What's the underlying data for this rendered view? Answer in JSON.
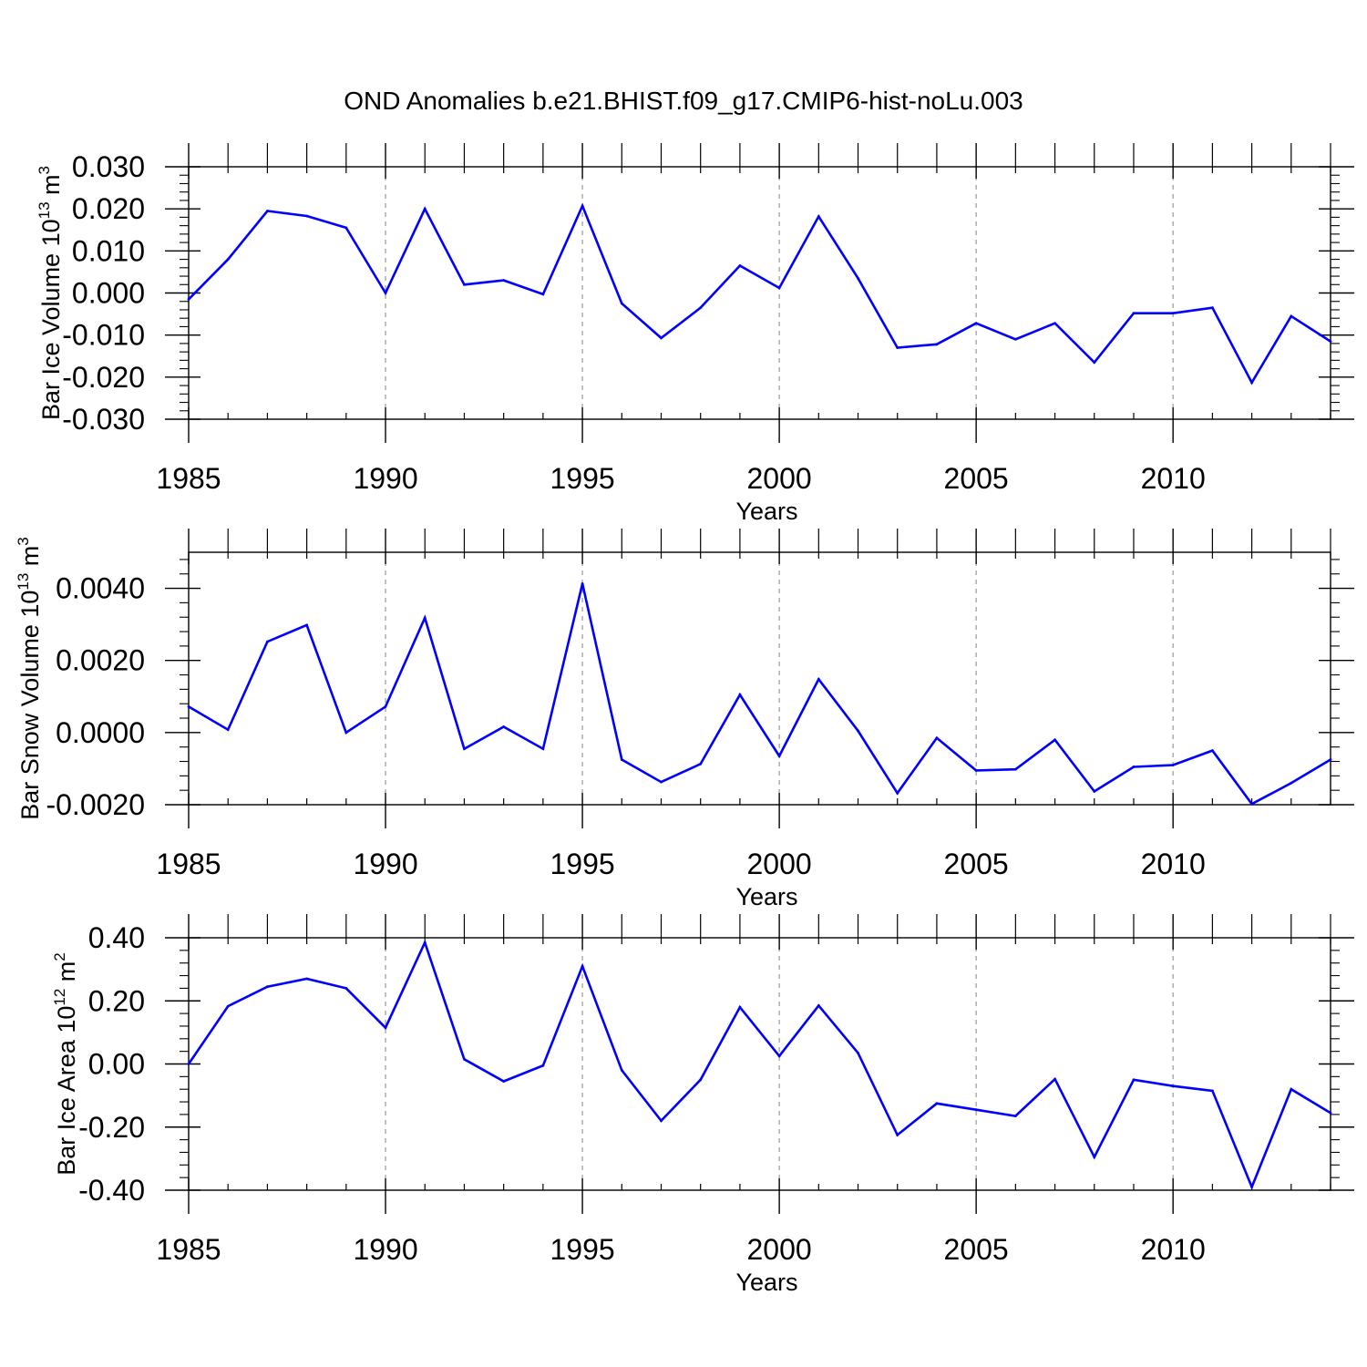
{
  "figure_title": "OND Anomalies b.e21.BHIST.f09_g17.CMIP6-hist-noLu.003",
  "colors": {
    "line": "#0000ff",
    "axes": "#000000",
    "grid": "#999999",
    "background": "#ffffff"
  },
  "chart_data": [
    {
      "type": "line",
      "xlabel": "Years",
      "ylabel": {
        "text": "Bar Ice Volume 10",
        "exponent": "13",
        "unit": " m",
        "unit_exponent": "3"
      },
      "xlim": [
        1985,
        2014
      ],
      "ylim": [
        -0.03,
        0.03
      ],
      "xticks": [
        1985,
        1990,
        1995,
        2000,
        2005,
        2010
      ],
      "xtick_labels": [
        "1985",
        "1990",
        "1995",
        "2000",
        "2005",
        "2010"
      ],
      "yticks": [
        0.03,
        0.02,
        0.01,
        0.0,
        -0.01,
        -0.02,
        -0.03
      ],
      "ytick_labels": [
        "0.030",
        "0.020",
        "0.010",
        "0.000",
        "-0.010",
        "-0.020",
        "-0.030"
      ],
      "grid": "vertical dashed at major x ticks",
      "x": [
        1985,
        1986,
        1987,
        1988,
        1989,
        1990,
        1991,
        1992,
        1993,
        1994,
        1995,
        1996,
        1997,
        1998,
        1999,
        2000,
        2001,
        2002,
        2003,
        2004,
        2005,
        2006,
        2007,
        2008,
        2009,
        2010,
        2011,
        2012,
        2013,
        2014
      ],
      "values": [
        -0.0015,
        0.008,
        0.0195,
        0.0183,
        0.0155,
        0.0,
        0.02,
        0.002,
        0.003,
        -0.0003,
        0.0207,
        -0.0025,
        -0.0107,
        -0.0035,
        0.0065,
        0.0012,
        0.0182,
        0.0035,
        -0.013,
        -0.0122,
        -0.0072,
        -0.011,
        -0.0072,
        -0.0165,
        -0.0048,
        -0.0048,
        -0.0035,
        -0.0213,
        -0.0055,
        -0.0115
      ]
    },
    {
      "type": "line",
      "xlabel": "Years",
      "ylabel": {
        "text": "Bar Snow Volume 10",
        "exponent": "13",
        "unit": " m",
        "unit_exponent": "3"
      },
      "xlim": [
        1985,
        2014
      ],
      "ylim": [
        -0.002,
        0.005
      ],
      "xticks": [
        1985,
        1990,
        1995,
        2000,
        2005,
        2010
      ],
      "xtick_labels": [
        "1985",
        "1990",
        "1995",
        "2000",
        "2005",
        "2010"
      ],
      "yticks": [
        0.004,
        0.002,
        0.0,
        -0.002
      ],
      "ytick_labels": [
        "0.0040",
        "0.0020",
        "0.0000",
        "-0.0020"
      ],
      "grid": "vertical dashed at major x ticks",
      "x": [
        1985,
        1986,
        1987,
        1988,
        1989,
        1990,
        1991,
        1992,
        1993,
        1994,
        1995,
        1996,
        1997,
        1998,
        1999,
        2000,
        2001,
        2002,
        2003,
        2004,
        2005,
        2006,
        2007,
        2008,
        2009,
        2010,
        2011,
        2012,
        2013,
        2014
      ],
      "values": [
        0.00072,
        8e-05,
        0.00252,
        0.00298,
        0.0,
        0.00072,
        0.00318,
        -0.00045,
        0.00016,
        -0.00045,
        0.00413,
        -0.00075,
        -0.00137,
        -0.00087,
        0.00105,
        -0.00065,
        0.00148,
        5e-05,
        -0.00168,
        -0.00015,
        -0.00105,
        -0.00102,
        -0.0002,
        -0.00163,
        -0.00095,
        -0.0009,
        -0.0005,
        -0.00198,
        -0.0014,
        -0.00075
      ]
    },
    {
      "type": "line",
      "xlabel": "Years",
      "ylabel": {
        "text": "Bar Ice Area 10",
        "exponent": "12",
        "unit": " m",
        "unit_exponent": "2"
      },
      "xlim": [
        1985,
        2014
      ],
      "ylim": [
        -0.4,
        0.4
      ],
      "xticks": [
        1985,
        1990,
        1995,
        2000,
        2005,
        2010
      ],
      "xtick_labels": [
        "1985",
        "1990",
        "1995",
        "2000",
        "2005",
        "2010"
      ],
      "yticks": [
        0.4,
        0.2,
        0.0,
        -0.2,
        -0.4
      ],
      "ytick_labels": [
        "0.40",
        "0.20",
        "0.00",
        "-0.20",
        "-0.40"
      ],
      "grid": "vertical dashed at major x ticks",
      "x": [
        1985,
        1986,
        1987,
        1988,
        1989,
        1990,
        1991,
        1992,
        1993,
        1994,
        1995,
        1996,
        1997,
        1998,
        1999,
        2000,
        2001,
        2002,
        2003,
        2004,
        2005,
        2006,
        2007,
        2008,
        2009,
        2010,
        2011,
        2012,
        2013,
        2014
      ],
      "values": [
        0.0,
        0.183,
        0.245,
        0.27,
        0.24,
        0.115,
        0.385,
        0.015,
        -0.055,
        -0.005,
        0.31,
        -0.02,
        -0.18,
        -0.05,
        0.18,
        0.025,
        0.185,
        0.035,
        -0.225,
        -0.125,
        -0.145,
        -0.165,
        -0.048,
        -0.295,
        -0.05,
        -0.07,
        -0.085,
        -0.39,
        -0.08,
        -0.155
      ]
    }
  ]
}
